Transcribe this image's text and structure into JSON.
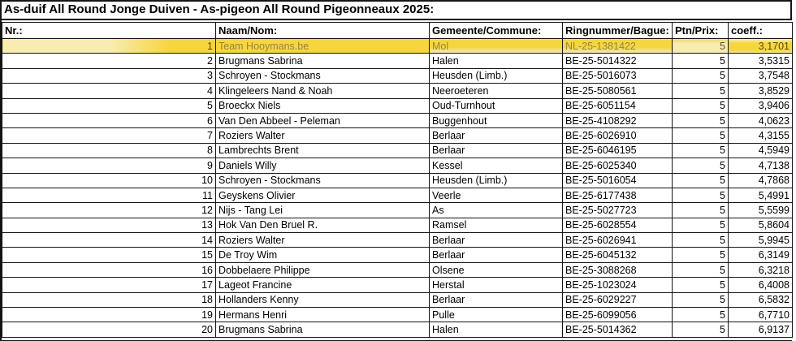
{
  "title": "As-duif All Round Jonge Duiven - As-pigeon All Round Pigeonneaux 2025:",
  "colors": {
    "highlight_bright": "#f6d63e",
    "highlight_pale": "#f8ecb2",
    "highlight_text_olive": "#958540",
    "highlight_text_dark": "#5a4c1a",
    "border": "#141414"
  },
  "table": {
    "columns": [
      {
        "key": "nr",
        "label": "Nr.:"
      },
      {
        "key": "name",
        "label": "Naam/Nom:"
      },
      {
        "key": "commune",
        "label": "Gemeente/Commune:"
      },
      {
        "key": "ring",
        "label": "Ringnummer/Bague:"
      },
      {
        "key": "ptn",
        "label": "Ptn/Prix:"
      },
      {
        "key": "coeff",
        "label": "coeff.:"
      }
    ],
    "rows": [
      {
        "nr": "1",
        "name": "Team Hooymans.be",
        "commune": "Mol",
        "ring": "NL-25-1381422",
        "ptn": "5",
        "coeff": "3,1701",
        "highlight": true
      },
      {
        "nr": "2",
        "name": "Brugmans Sabrina",
        "commune": "Halen",
        "ring": "BE-25-5014322",
        "ptn": "5",
        "coeff": "3,5315"
      },
      {
        "nr": "3",
        "name": "Schroyen - Stockmans",
        "commune": "Heusden (Limb.)",
        "ring": "BE-25-5016073",
        "ptn": "5",
        "coeff": "3,7548"
      },
      {
        "nr": "4",
        "name": "Klingeleers Nand & Noah",
        "commune": "Neeroeteren",
        "ring": "BE-25-5080561",
        "ptn": "5",
        "coeff": "3,8529"
      },
      {
        "nr": "5",
        "name": "Broeckx Niels",
        "commune": "Oud-Turnhout",
        "ring": "BE-25-6051154",
        "ptn": "5",
        "coeff": "3,9406"
      },
      {
        "nr": "6",
        "name": "Van Den Abbeel - Peleman",
        "commune": "Buggenhout",
        "ring": "BE-25-4108292",
        "ptn": "5",
        "coeff": "4,0623"
      },
      {
        "nr": "7",
        "name": "Roziers Walter",
        "commune": "Berlaar",
        "ring": "BE-25-6026910",
        "ptn": "5",
        "coeff": "4,3155"
      },
      {
        "nr": "8",
        "name": "Lambrechts Brent",
        "commune": "Berlaar",
        "ring": "BE-25-6046195",
        "ptn": "5",
        "coeff": "4,5949"
      },
      {
        "nr": "9",
        "name": "Daniels Willy",
        "commune": "Kessel",
        "ring": "BE-25-6025340",
        "ptn": "5",
        "coeff": "4,7138"
      },
      {
        "nr": "10",
        "name": "Schroyen - Stockmans",
        "commune": "Heusden (Limb.)",
        "ring": "BE-25-5016054",
        "ptn": "5",
        "coeff": "4,7868"
      },
      {
        "nr": "11",
        "name": "Geyskens Olivier",
        "commune": "Veerle",
        "ring": "BE-25-6177438",
        "ptn": "5",
        "coeff": "5,4991"
      },
      {
        "nr": "12",
        "name": "Nijs - Tang Lei",
        "commune": "As",
        "ring": "BE-25-5027723",
        "ptn": "5",
        "coeff": "5,5599"
      },
      {
        "nr": "13",
        "name": "Hok Van Den Bruel R.",
        "commune": "Ramsel",
        "ring": "BE-25-6028554",
        "ptn": "5",
        "coeff": "5,8604"
      },
      {
        "nr": "14",
        "name": "Roziers Walter",
        "commune": "Berlaar",
        "ring": "BE-25-6026941",
        "ptn": "5",
        "coeff": "5,9945"
      },
      {
        "nr": "15",
        "name": "De Troy Wim",
        "commune": "Berlaar",
        "ring": "BE-25-6045132",
        "ptn": "5",
        "coeff": "6,3149"
      },
      {
        "nr": "16",
        "name": "Dobbelaere Philippe",
        "commune": "Olsene",
        "ring": "BE-25-3088268",
        "ptn": "5",
        "coeff": "6,3218"
      },
      {
        "nr": "17",
        "name": "Lageot Francine",
        "commune": "Herstal",
        "ring": "BE-25-1023024",
        "ptn": "5",
        "coeff": "6,4008"
      },
      {
        "nr": "18",
        "name": "Hollanders Kenny",
        "commune": "Berlaar",
        "ring": "BE-25-6029227",
        "ptn": "5",
        "coeff": "6,5832"
      },
      {
        "nr": "19",
        "name": "Hermans Henri",
        "commune": "Pulle",
        "ring": "BE-25-6099056",
        "ptn": "5",
        "coeff": "6,7710"
      },
      {
        "nr": "20",
        "name": "Brugmans Sabrina",
        "commune": "Halen",
        "ring": "BE-25-5014362",
        "ptn": "5",
        "coeff": "6,9137"
      }
    ]
  }
}
